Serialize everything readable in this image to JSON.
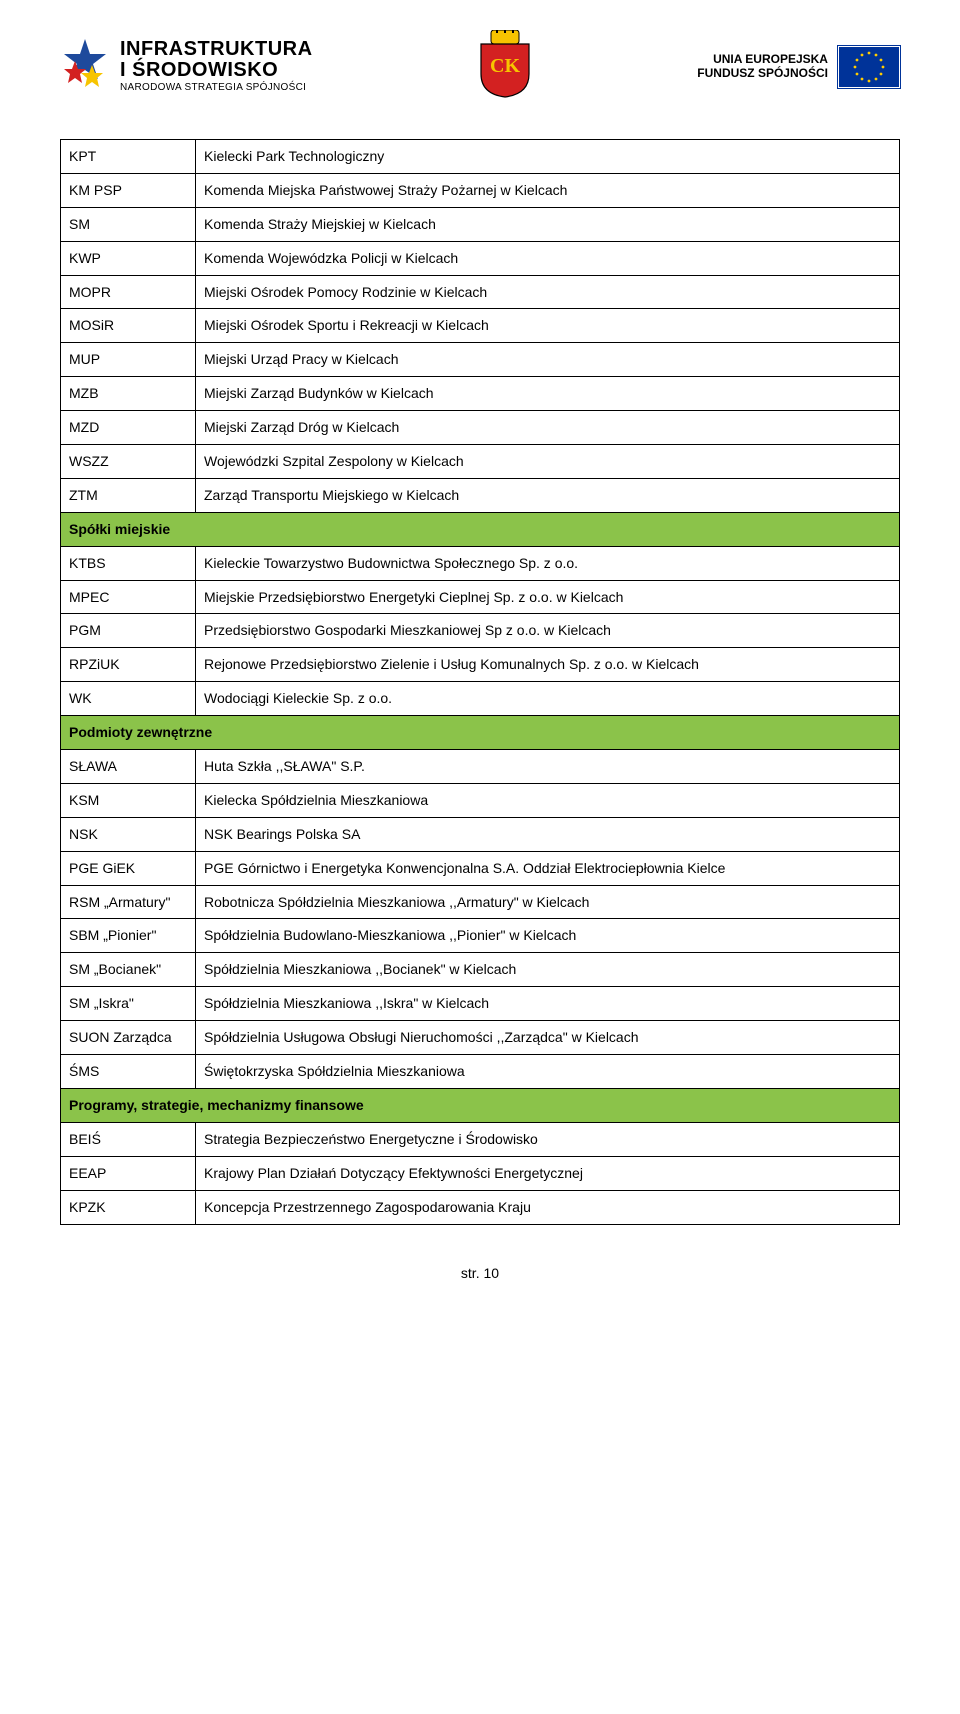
{
  "header": {
    "infra": {
      "title": "INFRASTRUKTURA\nI ŚRODOWISKO",
      "sub": "NARODOWA STRATEGIA SPÓJNOŚCI"
    },
    "eu": {
      "line1": "UNIA EUROPEJSKA",
      "line2": "FUNDUSZ SPÓJNOŚCI"
    }
  },
  "colors": {
    "section_bg": "#8bc34a",
    "border": "#000000",
    "text": "#000000",
    "eu_flag_bg": "#003399",
    "eu_star": "#ffcc00",
    "shield_red": "#d32121",
    "shield_yellow": "#f7c400",
    "infra_star_blue": "#1e4a9c",
    "infra_star_red": "#d32121",
    "infra_star_yellow": "#f7c400"
  },
  "rows": [
    {
      "type": "row",
      "abbr": "KPT",
      "desc": "Kielecki Park Technologiczny"
    },
    {
      "type": "row",
      "abbr": "KM PSP",
      "desc": "Komenda Miejska Państwowej Straży Pożarnej w Kielcach"
    },
    {
      "type": "row",
      "abbr": "SM",
      "desc": "Komenda Straży Miejskiej w Kielcach"
    },
    {
      "type": "row",
      "abbr": "KWP",
      "desc": "Komenda Wojewódzka Policji w Kielcach"
    },
    {
      "type": "row",
      "abbr": "MOPR",
      "desc": "Miejski Ośrodek Pomocy Rodzinie w Kielcach"
    },
    {
      "type": "row",
      "abbr": "MOSiR",
      "desc": "Miejski Ośrodek Sportu i Rekreacji w Kielcach"
    },
    {
      "type": "row",
      "abbr": "MUP",
      "desc": "Miejski Urząd Pracy w Kielcach"
    },
    {
      "type": "row",
      "abbr": "MZB",
      "desc": "Miejski Zarząd Budynków w Kielcach"
    },
    {
      "type": "row",
      "abbr": "MZD",
      "desc": "Miejski Zarząd Dróg w Kielcach"
    },
    {
      "type": "row",
      "abbr": "WSZZ",
      "desc": "Wojewódzki Szpital Zespolony w Kielcach"
    },
    {
      "type": "row",
      "abbr": "ZTM",
      "desc": "Zarząd Transportu Miejskiego w Kielcach"
    },
    {
      "type": "section",
      "label": "Spółki miejskie"
    },
    {
      "type": "row",
      "abbr": "KTBS",
      "desc": "Kieleckie Towarzystwo Budownictwa Społecznego Sp. z o.o."
    },
    {
      "type": "row",
      "abbr": "MPEC",
      "desc": "Miejskie Przedsiębiorstwo Energetyki Cieplnej Sp. z o.o. w Kielcach"
    },
    {
      "type": "row",
      "abbr": "PGM",
      "desc": "Przedsiębiorstwo Gospodarki Mieszkaniowej Sp z o.o. w Kielcach"
    },
    {
      "type": "row",
      "abbr": "RPZiUK",
      "desc": "Rejonowe Przedsiębiorstwo Zielenie i Usług Komunalnych Sp. z o.o. w Kielcach"
    },
    {
      "type": "row",
      "abbr": "WK",
      "desc": "Wodociągi Kieleckie Sp. z o.o."
    },
    {
      "type": "section",
      "label": "Podmioty zewnętrzne"
    },
    {
      "type": "row",
      "abbr": "SŁAWA",
      "desc": "Huta Szkła ,,SŁAWA\" S.P."
    },
    {
      "type": "row",
      "abbr": "KSM",
      "desc": "Kielecka Spółdzielnia Mieszkaniowa"
    },
    {
      "type": "row",
      "abbr": "NSK",
      "desc": "NSK Bearings Polska SA"
    },
    {
      "type": "row",
      "abbr": "PGE GiEK",
      "desc": "PGE Górnictwo i Energetyka Konwencjonalna S.A. Oddział Elektrociepłownia Kielce"
    },
    {
      "type": "row",
      "abbr": "RSM „Armatury\"",
      "desc": "Robotnicza Spółdzielnia Mieszkaniowa ,,Armatury\" w Kielcach"
    },
    {
      "type": "row",
      "abbr": "SBM „Pionier\"",
      "desc": "Spółdzielnia Budowlano-Mieszkaniowa ,,Pionier\" w Kielcach"
    },
    {
      "type": "row",
      "abbr": "SM „Bocianek\"",
      "desc": "Spółdzielnia Mieszkaniowa ,,Bocianek\" w Kielcach"
    },
    {
      "type": "row",
      "abbr": "SM „Iskra\"",
      "desc": "Spółdzielnia Mieszkaniowa ,,Iskra\" w Kielcach"
    },
    {
      "type": "row",
      "abbr": "SUON Zarządca",
      "desc": "Spółdzielnia Usługowa Obsługi Nieruchomości ,,Zarządca\" w Kielcach"
    },
    {
      "type": "row",
      "abbr": "ŚMS",
      "desc": "Świętokrzyska Spółdzielnia Mieszkaniowa"
    },
    {
      "type": "section",
      "label": "Programy, strategie, mechanizmy finansowe"
    },
    {
      "type": "row",
      "abbr": "BEIŚ",
      "desc": "Strategia Bezpieczeństwo Energetyczne i Środowisko"
    },
    {
      "type": "row",
      "abbr": "EEAP",
      "desc": "Krajowy Plan Działań Dotyczący Efektywności Energetycznej"
    },
    {
      "type": "row",
      "abbr": "KPZK",
      "desc": "Koncepcja Przestrzennego Zagospodarowania Kraju"
    }
  ],
  "footer": "str. 10"
}
